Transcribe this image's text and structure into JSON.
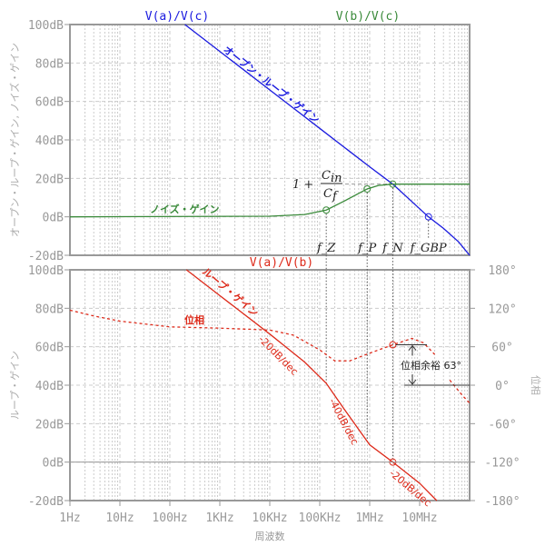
{
  "chart_data": [
    {
      "type": "line",
      "panel": "top",
      "xscale": "log",
      "xlim": [
        1,
        100000000
      ],
      "ylim": [
        -20,
        100
      ],
      "grid": true,
      "ylabel": "オープン・ループ・ゲイン, ノイズ・ゲイン",
      "yticks": [
        "100dB",
        "80dB",
        "60dB",
        "40dB",
        "20dB",
        "0dB",
        "-20dB"
      ],
      "series": [
        {
          "name": "V(a)/V(c)",
          "label": "オープン・ループ・ゲイン",
          "color": "#1a1adf",
          "points": [
            [
              200,
              100
            ],
            [
              1000,
              86
            ],
            [
              10000,
              66
            ],
            [
              100000,
              46
            ],
            [
              1000000,
              26
            ],
            [
              2900000,
              17
            ],
            [
              15000000,
              0
            ],
            [
              30000000,
              -6
            ],
            [
              60000000,
              -13
            ],
            [
              100000000,
              -20
            ]
          ]
        },
        {
          "name": "V(b)/V(c)",
          "label": "ノイズ・ゲイン",
          "color": "#3a8a3a",
          "points": [
            [
              1,
              0
            ],
            [
              10000,
              0.3
            ],
            [
              50000,
              1.2
            ],
            [
              135000,
              3.5
            ],
            [
              300000,
              8
            ],
            [
              890000,
              14.5
            ],
            [
              1500000,
              16.3
            ],
            [
              2900000,
              17
            ],
            [
              100000000,
              17
            ]
          ]
        }
      ],
      "markers": [
        {
          "label": "f_Z",
          "sub": "Z",
          "x": 135000,
          "y": 3.5,
          "color": "#3a8a3a"
        },
        {
          "label": "f_P",
          "sub": "P",
          "x": 890000,
          "y": 14.5,
          "color": "#3a8a3a"
        },
        {
          "label": "f_N",
          "sub": "N",
          "x": 2900000,
          "y": 17,
          "color": "#3a8a3a"
        },
        {
          "label": "f_GBP",
          "sub": "GBP",
          "x": 15000000,
          "y": 0,
          "color": "#1a1adf"
        }
      ],
      "annotation": {
        "one_plus": "1 +",
        "num": "C",
        "num_sub": "in",
        "den": "C",
        "den_sub": "f",
        "level_db": 17
      }
    },
    {
      "type": "line",
      "panel": "bottom",
      "xscale": "log",
      "xlim": [
        1,
        100000000
      ],
      "ylim": [
        -20,
        100
      ],
      "y2lim": [
        -180,
        180
      ],
      "grid": true,
      "ylabel": "ループ・ゲイン",
      "y2label": "位相",
      "xlabel": "周波数",
      "yticks": [
        "100dB",
        "80dB",
        "60dB",
        "40dB",
        "20dB",
        "0dB",
        "-20dB"
      ],
      "y2ticks": [
        "180°",
        "120°",
        "60°",
        "0°",
        "-60°",
        "-120°",
        "-180°"
      ],
      "xticks": [
        "1Hz",
        "10Hz",
        "100Hz",
        "1KHz",
        "10KHz",
        "100KHz",
        "1MHz",
        "10MHz"
      ],
      "series": [
        {
          "name": "V(a)/V(b)",
          "label": "ループ・ゲイン",
          "color": "#dd2a1a",
          "points": [
            [
              215,
              100
            ],
            [
              1000,
              86.6
            ],
            [
              10000,
              66.6
            ],
            [
              50000,
              52
            ],
            [
              135000,
              41
            ],
            [
              300000,
              28
            ],
            [
              1000000,
              9
            ],
            [
              2900000,
              0
            ],
            [
              10000000,
              -11
            ],
            [
              22000000,
              -20
            ]
          ]
        },
        {
          "label": "位相",
          "color": "#dd2a1a",
          "axis": "right",
          "style": "dashed",
          "points": [
            [
              1,
              117
            ],
            [
              3,
              108
            ],
            [
              10,
              100
            ],
            [
              100,
              91
            ],
            [
              1000,
              89
            ],
            [
              10000,
              86
            ],
            [
              30000,
              78
            ],
            [
              100000,
              55
            ],
            [
              200000,
              38
            ],
            [
              400000,
              38
            ],
            [
              1000000,
              50
            ],
            [
              2900000,
              63
            ],
            [
              7000000,
              73
            ],
            [
              12000000,
              66
            ],
            [
              20000000,
              48
            ]
          ],
          "points2": [
            [
              40000000,
              8
            ],
            [
              70000000,
              -15
            ],
            [
              100000000,
              -28
            ]
          ]
        }
      ],
      "slopes": [
        "-20dB/dec",
        "-40dB/dec",
        "-20dB/dec"
      ],
      "phase_margin": {
        "label": "位相余裕 63°",
        "value_deg": 63,
        "freq": 2900000
      }
    }
  ]
}
